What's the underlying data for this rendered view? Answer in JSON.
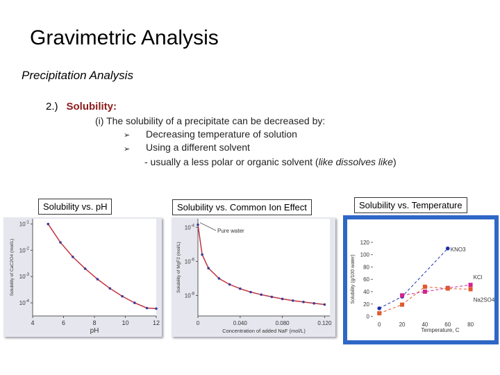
{
  "slide": {
    "title": "Gravimetric Analysis",
    "subtitle": "Precipitation Analysis",
    "item_number": "2.)",
    "item_heading": "Solubility:",
    "intro": "(i) The solubility of a precipitate can be decreased by:",
    "bullets": [
      "Decreasing temperature of solution",
      "Using a different solvent"
    ],
    "sub_note_prefix": "- usually a less polar or organic solvent (",
    "sub_note_italic": "like dissolves like",
    "sub_note_suffix": ")",
    "bullet_icon": "arrow-bullet-icon",
    "heading_color": "#8b1a1a"
  },
  "labels": {
    "ph": "Solubility vs. pH",
    "common_ion": "Solubility vs. Common Ion Effect",
    "temperature": "Solubility vs. Temperature"
  },
  "chart_data": [
    {
      "type": "line",
      "xlabel": "pH",
      "ylabel": "Solubility of CaC2O4 (mol/L)",
      "x_ticks": [
        "4",
        "6",
        "8",
        "10",
        "12"
      ],
      "y_ticks": [
        "10^-1",
        "10^-2",
        "10^-3",
        "10^-4"
      ],
      "xlim": [
        4,
        12
      ],
      "ylim_log10": [
        -4.5,
        -0.8
      ],
      "y_scale": "log",
      "series": [
        {
          "x": [
            5,
            5.8,
            6.6,
            7.4,
            8.2,
            9,
            9.8,
            10.6,
            11.4,
            12
          ],
          "y_log10": [
            -1.0,
            -1.7,
            -2.25,
            -2.7,
            -3.1,
            -3.45,
            -3.75,
            -4.0,
            -4.2,
            -4.22
          ]
        }
      ],
      "line_color": "#c0333e",
      "marker_color": "#3c3c9a"
    },
    {
      "type": "line",
      "xlabel": "Concentration of added NaF (mol/L)",
      "ylabel": "Solubility of MgF2 (mol/L)",
      "x_ticks": [
        "0",
        "0.040",
        "0.080",
        "0.120"
      ],
      "y_ticks": [
        "10^-4",
        "10^-6",
        "10^-8"
      ],
      "xlim": [
        0,
        0.125
      ],
      "ylim_log10": [
        -9.2,
        -3.5
      ],
      "y_scale": "log",
      "annotation": "Pure water",
      "series": [
        {
          "x": [
            0,
            0.004,
            0.01,
            0.02,
            0.03,
            0.04,
            0.05,
            0.06,
            0.07,
            0.08,
            0.09,
            0.1,
            0.11,
            0.12
          ],
          "y_log10": [
            -3.85,
            -5.6,
            -6.4,
            -7.0,
            -7.35,
            -7.6,
            -7.8,
            -7.95,
            -8.08,
            -8.2,
            -8.3,
            -8.38,
            -8.46,
            -8.53
          ]
        }
      ],
      "line_color": "#c0333e",
      "marker_color": "#3c3c9a"
    },
    {
      "type": "line",
      "xlabel": "Temperature, C",
      "ylabel": "Solubility (g/100 water)",
      "x_ticks": [
        "0",
        "20",
        "40",
        "60",
        "80"
      ],
      "y_ticks": [
        "0",
        "20",
        "40",
        "60",
        "80",
        "100",
        "120"
      ],
      "xlim": [
        -5,
        90
      ],
      "ylim": [
        -5,
        130
      ],
      "series": [
        {
          "name": "KNO3",
          "x": [
            0,
            20,
            60
          ],
          "y": [
            13,
            32,
            110
          ],
          "color": "#1e2fa8",
          "dash": "4,3"
        },
        {
          "name": "KCl",
          "x": [
            20,
            40,
            60,
            80
          ],
          "y": [
            34,
            40,
            46,
            51
          ],
          "color": "#d1248f",
          "dash": "4,3"
        },
        {
          "name": "Na2SO4",
          "x": [
            0,
            20,
            40,
            60,
            80
          ],
          "y": [
            5,
            19,
            48,
            45,
            44
          ],
          "color": "#e05a2c",
          "dash": "4,3"
        }
      ]
    }
  ]
}
